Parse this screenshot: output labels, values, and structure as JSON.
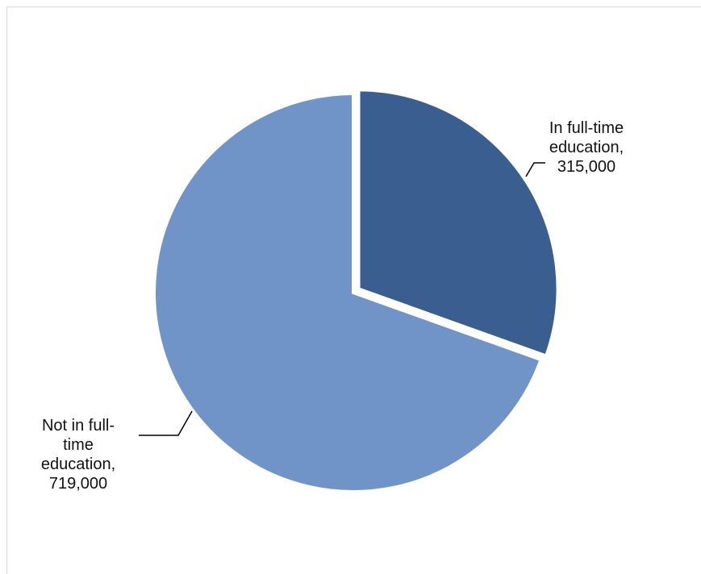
{
  "chart_data": {
    "type": "pie",
    "title": "",
    "slices": [
      {
        "label_lines": [
          "In full-time",
          "education,",
          "315,000"
        ],
        "value": 315000,
        "color": "#3B5E91"
      },
      {
        "label_lines": [
          "Not in full-",
          "time",
          "education,",
          "719,000"
        ],
        "value": 719000,
        "color": "#7094C7"
      }
    ],
    "legend": "none"
  }
}
